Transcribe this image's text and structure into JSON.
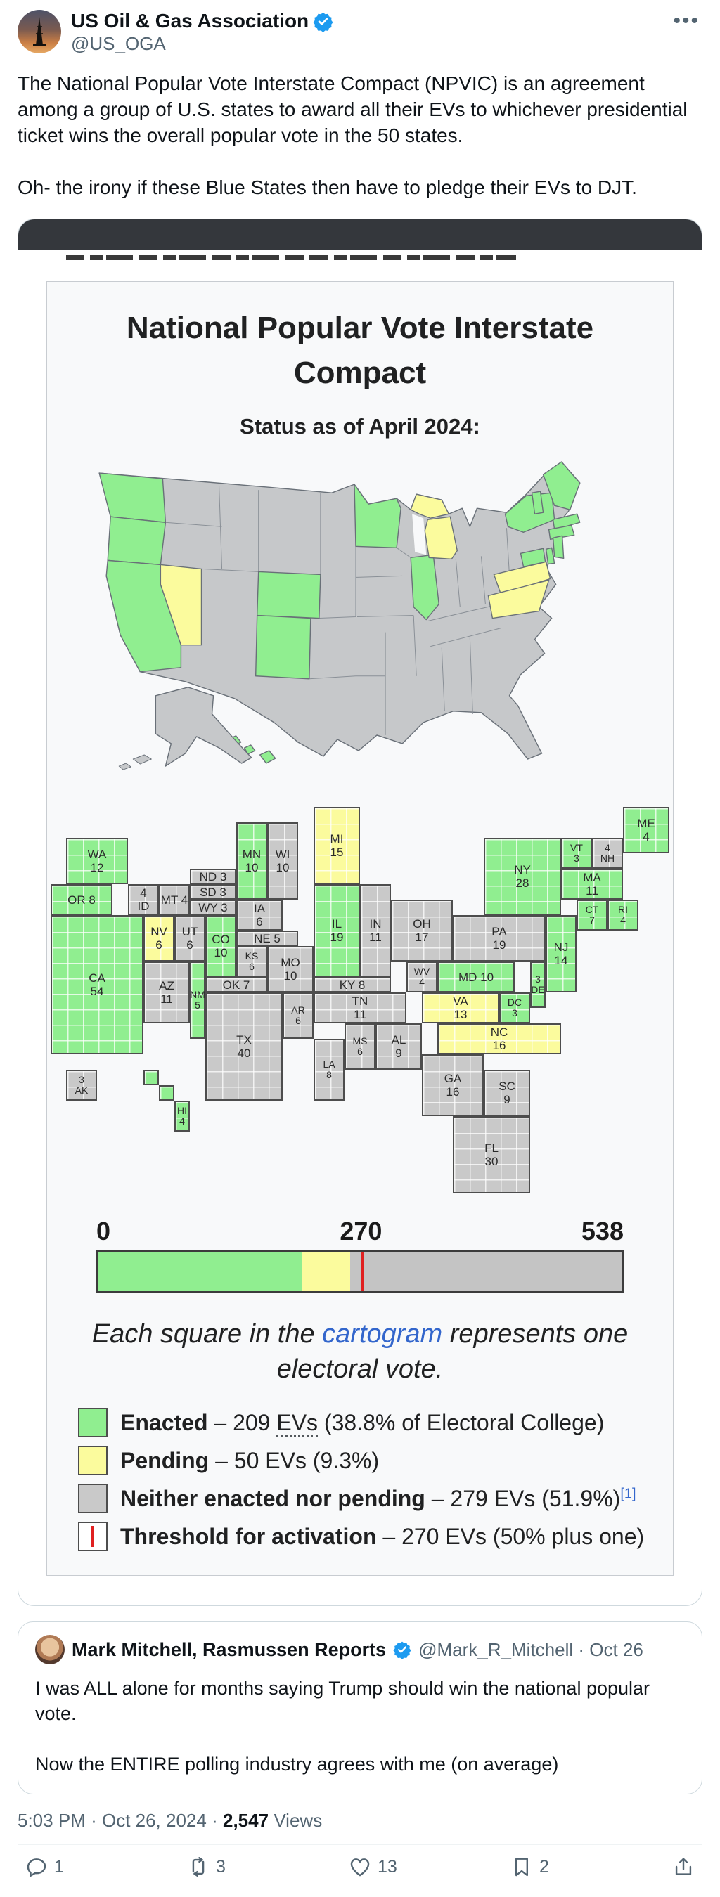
{
  "tweet": {
    "author": {
      "name": "US Oil & Gas Association",
      "handle": "@US_OGA"
    },
    "body_p1": "The National Popular Vote Interstate Compact (NPVIC) is an agreement among a group of U.S. states to award all their EVs to whichever presidential ticket wins the overall popular vote in the 50 states.",
    "body_p2": "Oh-  the irony if these Blue States then have to pledge their EVs to DJT."
  },
  "infographic": {
    "title_line1": "National Popular Vote Interstate",
    "title_line2": "Compact",
    "subtitle": "Status as of April 2024:",
    "scale": {
      "start": "0",
      "threshold": "270",
      "end": "538"
    },
    "caption_pre": "Each square in the ",
    "caption_link": "cartogram",
    "caption_post": " represents one electoral vote.",
    "legend": [
      {
        "label": "Enacted",
        "dash": " – ",
        "pre": "209 ",
        "abbr": "EVs",
        "post": " (38.8% of Electoral College)",
        "swatch": "enacted"
      },
      {
        "label": "Pending",
        "dash": " – ",
        "pre": "50 EVs (9.3%)",
        "abbr": "",
        "post": "",
        "swatch": "pending"
      },
      {
        "label": "Neither enacted nor pending",
        "dash": " – ",
        "pre": "279 EVs (51.9%)",
        "abbr": "",
        "post": "",
        "ref": "[1]",
        "swatch": "neither"
      },
      {
        "label": "Threshold for activation",
        "dash": " – ",
        "pre": "270 EVs (50% plus one)",
        "abbr": "",
        "post": "",
        "swatch": "threshold"
      }
    ]
  },
  "chart_data": {
    "type": "cartogram-map",
    "title": "National Popular Vote Interstate Compact",
    "subtitle": "Status as of April 2024:",
    "bar": {
      "total": 538,
      "enacted": 209,
      "pending": 50,
      "neither": 279,
      "threshold": 270
    },
    "colors": {
      "enacted": "#90ee90",
      "pending": "#fbfb9d",
      "neither": "#c9c9c9",
      "threshold_line": "#e02020"
    },
    "states": [
      {
        "abbr": "WA",
        "ev": 12,
        "status": "enacted",
        "x": 1,
        "y": 3,
        "w": 4,
        "h": 3,
        "label": [
          "WA",
          "12"
        ]
      },
      {
        "abbr": "OR",
        "ev": 8,
        "status": "enacted",
        "x": 0,
        "y": 6,
        "w": 4,
        "h": 2,
        "label": [
          "OR 8"
        ]
      },
      {
        "abbr": "CA",
        "ev": 54,
        "status": "enacted",
        "x": 0,
        "y": 8,
        "w": 6,
        "h": 9,
        "label": [
          "CA",
          "54"
        ]
      },
      {
        "abbr": "ID",
        "ev": 4,
        "status": "neither",
        "x": 5,
        "y": 6,
        "w": 2,
        "h": 2,
        "label": [
          "4",
          "ID"
        ]
      },
      {
        "abbr": "MT",
        "ev": 4,
        "status": "neither",
        "x": 7,
        "y": 6,
        "w": 2,
        "h": 2,
        "label": [
          "MT 4"
        ]
      },
      {
        "abbr": "ND",
        "ev": 3,
        "status": "neither",
        "x": 9,
        "y": 5,
        "w": 3,
        "h": 1,
        "label": [
          "ND 3"
        ]
      },
      {
        "abbr": "SD",
        "ev": 3,
        "status": "neither",
        "x": 9,
        "y": 6,
        "w": 3,
        "h": 1,
        "label": [
          "SD 3"
        ]
      },
      {
        "abbr": "WY",
        "ev": 3,
        "status": "neither",
        "x": 9,
        "y": 7,
        "w": 3,
        "h": 1,
        "label": [
          "WY 3"
        ]
      },
      {
        "abbr": "NV",
        "ev": 6,
        "status": "pending",
        "x": 6,
        "y": 8,
        "w": 2,
        "h": 3,
        "label": [
          "NV",
          "6"
        ]
      },
      {
        "abbr": "UT",
        "ev": 6,
        "status": "neither",
        "x": 8,
        "y": 8,
        "w": 2,
        "h": 3,
        "label": [
          "UT",
          "6"
        ]
      },
      {
        "abbr": "CO",
        "ev": 10,
        "status": "enacted",
        "x": 10,
        "y": 8,
        "w": 2,
        "h": 4,
        "label": [
          "CO",
          "10"
        ]
      },
      {
        "abbr": "AZ",
        "ev": 11,
        "status": "neither",
        "x": 6,
        "y": 11,
        "w": 3,
        "h": 4,
        "label": [
          "AZ",
          "11"
        ]
      },
      {
        "abbr": "NM",
        "ev": 5,
        "status": "enacted",
        "x": 9,
        "y": 11,
        "w": 1,
        "h": 5,
        "label": [
          "NM",
          "5"
        ],
        "small": true
      },
      {
        "abbr": "NE",
        "ev": 5,
        "status": "neither",
        "x": 12,
        "y": 9,
        "w": 4,
        "h": 1,
        "label": [
          "NE 5"
        ]
      },
      {
        "abbr": "KS",
        "ev": 6,
        "status": "neither",
        "x": 12,
        "y": 10,
        "w": 2,
        "h": 2,
        "label": [
          "KS",
          "6"
        ],
        "small": true
      },
      {
        "abbr": "OK",
        "ev": 7,
        "status": "neither",
        "x": 10,
        "y": 12,
        "w": 4,
        "h": 1,
        "label": [
          "OK 7"
        ]
      },
      {
        "abbr": "TX",
        "ev": 40,
        "status": "neither",
        "x": 10,
        "y": 13,
        "w": 5,
        "h": 7,
        "label": [
          "TX",
          "40"
        ]
      },
      {
        "abbr": "MN",
        "ev": 10,
        "status": "enacted",
        "x": 12,
        "y": 2,
        "w": 2,
        "h": 5,
        "label": [
          "MN",
          "10"
        ]
      },
      {
        "abbr": "WI",
        "ev": 10,
        "status": "neither",
        "x": 14,
        "y": 2,
        "w": 2,
        "h": 5,
        "label": [
          "WI",
          "10"
        ]
      },
      {
        "abbr": "MI",
        "ev": 15,
        "status": "pending",
        "x": 17,
        "y": 1,
        "w": 3,
        "h": 5,
        "label": [
          "MI",
          "15"
        ]
      },
      {
        "abbr": "IA",
        "ev": 6,
        "status": "neither",
        "x": 12,
        "y": 7,
        "w": 3,
        "h": 2,
        "label": [
          "IA",
          "6"
        ]
      },
      {
        "abbr": "MO",
        "ev": 10,
        "status": "neither",
        "x": 14,
        "y": 10,
        "w": 3,
        "h": 3,
        "label": [
          "MO",
          "10"
        ]
      },
      {
        "abbr": "IL",
        "ev": 19,
        "status": "enacted",
        "x": 17,
        "y": 6,
        "w": 3,
        "h": 6,
        "label": [
          "IL",
          "19"
        ]
      },
      {
        "abbr": "IN",
        "ev": 11,
        "status": "neither",
        "x": 20,
        "y": 6,
        "w": 2,
        "h": 6,
        "label": [
          "IN",
          "11"
        ]
      },
      {
        "abbr": "OH",
        "ev": 17,
        "status": "neither",
        "x": 22,
        "y": 7,
        "w": 4,
        "h": 4,
        "label": [
          "OH",
          "17"
        ]
      },
      {
        "abbr": "KY",
        "ev": 8,
        "status": "neither",
        "x": 17,
        "y": 12,
        "w": 5,
        "h": 1,
        "label": [
          "KY 8"
        ]
      },
      {
        "abbr": "TN",
        "ev": 11,
        "status": "neither",
        "x": 17,
        "y": 13,
        "w": 6,
        "h": 2,
        "label": [
          "TN",
          "11"
        ]
      },
      {
        "abbr": "AR",
        "ev": 6,
        "status": "neither",
        "x": 15,
        "y": 13,
        "w": 2,
        "h": 3,
        "label": [
          "AR",
          "6"
        ],
        "small": true
      },
      {
        "abbr": "MS",
        "ev": 6,
        "status": "neither",
        "x": 19,
        "y": 15,
        "w": 2,
        "h": 3,
        "label": [
          "MS",
          "6"
        ],
        "small": true
      },
      {
        "abbr": "AL",
        "ev": 9,
        "status": "neither",
        "x": 21,
        "y": 15,
        "w": 3,
        "h": 3,
        "label": [
          "AL",
          "9"
        ]
      },
      {
        "abbr": "LA",
        "ev": 8,
        "status": "neither",
        "x": 17,
        "y": 16,
        "w": 2,
        "h": 4,
        "label": [
          "LA",
          "8"
        ],
        "small": true
      },
      {
        "abbr": "GA",
        "ev": 16,
        "status": "neither",
        "x": 24,
        "y": 17,
        "w": 4,
        "h": 4,
        "label": [
          "GA",
          "16"
        ]
      },
      {
        "abbr": "SC",
        "ev": 9,
        "status": "neither",
        "x": 28,
        "y": 18,
        "w": 3,
        "h": 3,
        "label": [
          "SC",
          "9"
        ]
      },
      {
        "abbr": "FL",
        "ev": 30,
        "status": "neither",
        "x": 26,
        "y": 21,
        "w": 5,
        "h": 5,
        "label": [
          "FL",
          "30"
        ]
      },
      {
        "abbr": "WV",
        "ev": 4,
        "status": "neither",
        "x": 23,
        "y": 11,
        "w": 2,
        "h": 2,
        "label": [
          "WV",
          "4"
        ],
        "small": true
      },
      {
        "abbr": "VA",
        "ev": 13,
        "status": "pending",
        "x": 24,
        "y": 13,
        "w": 5,
        "h": 2,
        "label": [
          "VA",
          "13"
        ]
      },
      {
        "abbr": "NC",
        "ev": 16,
        "status": "pending",
        "x": 25,
        "y": 15,
        "w": 8,
        "h": 2,
        "label": [
          "NC",
          "16"
        ]
      },
      {
        "abbr": "PA",
        "ev": 19,
        "status": "neither",
        "x": 26,
        "y": 8,
        "w": 6,
        "h": 3,
        "label": [
          "PA",
          "19"
        ]
      },
      {
        "abbr": "MD",
        "ev": 10,
        "status": "enacted",
        "x": 25,
        "y": 11,
        "w": 5,
        "h": 2,
        "label": [
          "MD 10"
        ]
      },
      {
        "abbr": "DE",
        "ev": 3,
        "status": "enacted",
        "x": 31,
        "y": 11,
        "w": 1,
        "h": 3,
        "label": [
          "3",
          "DE"
        ],
        "small": true
      },
      {
        "abbr": "DC",
        "ev": 3,
        "status": "enacted",
        "x": 29,
        "y": 13,
        "w": 2,
        "h": 2,
        "label": [
          "DC",
          "3"
        ],
        "small": true
      },
      {
        "abbr": "NJ",
        "ev": 14,
        "status": "enacted",
        "x": 32,
        "y": 8,
        "w": 2,
        "h": 5,
        "label": [
          "NJ",
          "14"
        ]
      },
      {
        "abbr": "NY",
        "ev": 28,
        "status": "enacted",
        "x": 28,
        "y": 3,
        "w": 5,
        "h": 5,
        "label": [
          "NY",
          "28"
        ]
      },
      {
        "abbr": "VT",
        "ev": 3,
        "status": "enacted",
        "x": 33,
        "y": 3,
        "w": 2,
        "h": 2,
        "label": [
          "VT",
          "3"
        ],
        "small": true
      },
      {
        "abbr": "NH",
        "ev": 4,
        "status": "neither",
        "x": 35,
        "y": 3,
        "w": 2,
        "h": 2,
        "label": [
          "4",
          "NH"
        ],
        "small": true
      },
      {
        "abbr": "ME",
        "ev": 4,
        "status": "enacted",
        "x": 37,
        "y": 1,
        "w": 3,
        "h": 3,
        "label": [
          "ME",
          "4"
        ]
      },
      {
        "abbr": "MA",
        "ev": 11,
        "status": "enacted",
        "x": 33,
        "y": 5,
        "w": 4,
        "h": 2,
        "label": [
          "MA",
          "11"
        ]
      },
      {
        "abbr": "CT",
        "ev": 7,
        "status": "enacted",
        "x": 34,
        "y": 7,
        "w": 2,
        "h": 2,
        "label": [
          "CT",
          "7"
        ],
        "small": true
      },
      {
        "abbr": "RI",
        "ev": 4,
        "status": "enacted",
        "x": 36,
        "y": 7,
        "w": 2,
        "h": 2,
        "label": [
          "RI",
          "4"
        ],
        "small": true
      },
      {
        "abbr": "AK",
        "ev": 3,
        "status": "neither",
        "x": 1,
        "y": 18,
        "w": 2,
        "h": 2,
        "label": [
          "3",
          "AK"
        ],
        "small": true
      },
      {
        "abbr": "HI",
        "ev": 4,
        "status": "enacted",
        "x": 8,
        "y": 20,
        "w": 1,
        "h": 2,
        "label": [
          "HI",
          "4"
        ],
        "small": true
      }
    ],
    "extra_squares": [
      {
        "x": 6,
        "y": 18,
        "w": 1,
        "h": 1,
        "status": "enacted"
      },
      {
        "x": 7,
        "y": 19,
        "w": 1,
        "h": 1,
        "status": "enacted"
      }
    ]
  },
  "quote": {
    "author": {
      "name": "Mark Mitchell, Rasmussen Reports",
      "handle": "@Mark_R_Mitchell",
      "date_sep": "·",
      "date": "Oct 26"
    },
    "body_p1": "I was ALL alone for months saying Trump should win the national popular vote.",
    "body_p2": "Now the ENTIRE polling industry agrees with me (on average)"
  },
  "footer": {
    "time": "5:03 PM",
    "sep1": "·",
    "date": "Oct 26, 2024",
    "sep2": "·",
    "views_count": "2,547",
    "views_label": "Views"
  },
  "actions": [
    {
      "name": "reply",
      "count": "1"
    },
    {
      "name": "repost",
      "count": "3"
    },
    {
      "name": "like",
      "count": "13"
    },
    {
      "name": "bookmark",
      "count": "2"
    },
    {
      "name": "share",
      "count": ""
    }
  ]
}
